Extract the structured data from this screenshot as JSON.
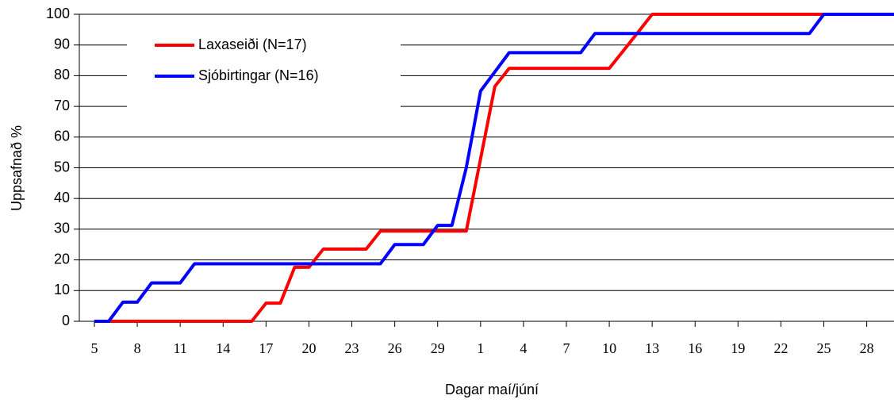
{
  "chart_data": {
    "type": "line",
    "xlabel": "Dagar maí/júní",
    "ylabel": "Uppsafnað %",
    "categories": [
      "5",
      null,
      null,
      "8",
      null,
      null,
      "11",
      null,
      null,
      "14",
      null,
      null,
      "17",
      null,
      null,
      "20",
      null,
      null,
      "23",
      null,
      null,
      "26",
      null,
      null,
      "29",
      null,
      null,
      "1",
      null,
      null,
      "4",
      null,
      null,
      "7",
      null,
      null,
      "10",
      null,
      null,
      "13",
      null,
      null,
      "16",
      null,
      null,
      "19",
      null,
      null,
      "22",
      null,
      null,
      "25",
      null,
      null,
      "28",
      null,
      null
    ],
    "series": [
      {
        "name": "Laxaseiði (N=17)",
        "color": "#ff0000",
        "values": [
          0,
          0,
          0,
          0,
          0,
          0,
          0,
          0,
          0,
          0,
          0,
          0,
          5.9,
          5.9,
          17.6,
          17.6,
          23.5,
          23.5,
          23.5,
          23.5,
          29.4,
          29.4,
          29.4,
          29.4,
          29.4,
          29.4,
          29.4,
          52.9,
          76.5,
          82.4,
          82.4,
          82.4,
          82.4,
          82.4,
          82.4,
          82.4,
          82.4,
          88.2,
          94.1,
          100,
          100,
          100,
          100,
          100,
          100,
          100,
          100,
          100,
          100,
          100,
          100,
          100,
          100,
          100,
          100,
          100,
          100
        ]
      },
      {
        "name": "Sjóbirtingar (N=16)",
        "color": "#0000ff",
        "values": [
          0,
          0,
          6.25,
          6.25,
          12.5,
          12.5,
          12.5,
          18.75,
          18.75,
          18.75,
          18.75,
          18.75,
          18.75,
          18.75,
          18.75,
          18.75,
          18.75,
          18.75,
          18.75,
          18.75,
          18.75,
          25,
          25,
          25,
          31.25,
          31.25,
          50,
          75,
          81.25,
          87.5,
          87.5,
          87.5,
          87.5,
          87.5,
          87.5,
          93.75,
          93.75,
          93.75,
          93.75,
          93.75,
          93.75,
          93.75,
          93.75,
          93.75,
          93.75,
          93.75,
          93.75,
          93.75,
          93.75,
          93.75,
          93.75,
          100,
          100,
          100,
          100,
          100,
          100
        ]
      }
    ],
    "ylim": [
      0,
      100
    ],
    "yticks": [
      0,
      10,
      20,
      30,
      40,
      50,
      60,
      70,
      80,
      90,
      100
    ],
    "grid": true,
    "legend": "upper left"
  }
}
